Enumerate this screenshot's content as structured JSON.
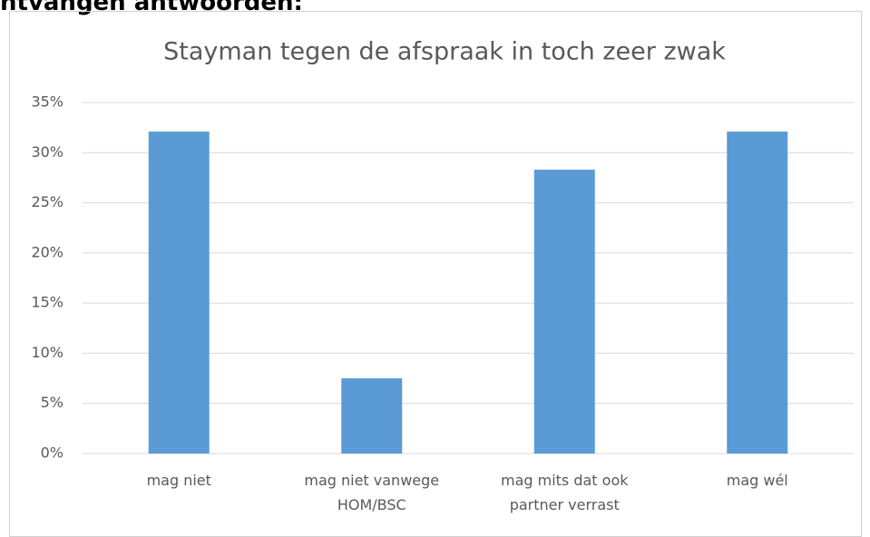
{
  "heading": "ntvangen antwoorden:",
  "chart_data": {
    "type": "bar",
    "title": "Stayman tegen de afspraak in toch zeer zwak",
    "categories": [
      "mag niet",
      "mag niet vanwege HOM/BSC",
      "mag mits dat ook partner verrast",
      "mag wél"
    ],
    "values": [
      32.1,
      7.5,
      28.3,
      32.1
    ],
    "color": "#5b9bd5",
    "ylim": [
      0,
      35
    ],
    "yticks": [
      {
        "value": 0,
        "label": "0%"
      },
      {
        "value": 5,
        "label": "5%"
      },
      {
        "value": 10,
        "label": "10%"
      },
      {
        "value": 15,
        "label": "15%"
      },
      {
        "value": 20,
        "label": "20%"
      },
      {
        "value": 25,
        "label": "25%"
      },
      {
        "value": 30,
        "label": "30%"
      },
      {
        "value": 35,
        "label": "35%"
      }
    ],
    "grid": true
  }
}
